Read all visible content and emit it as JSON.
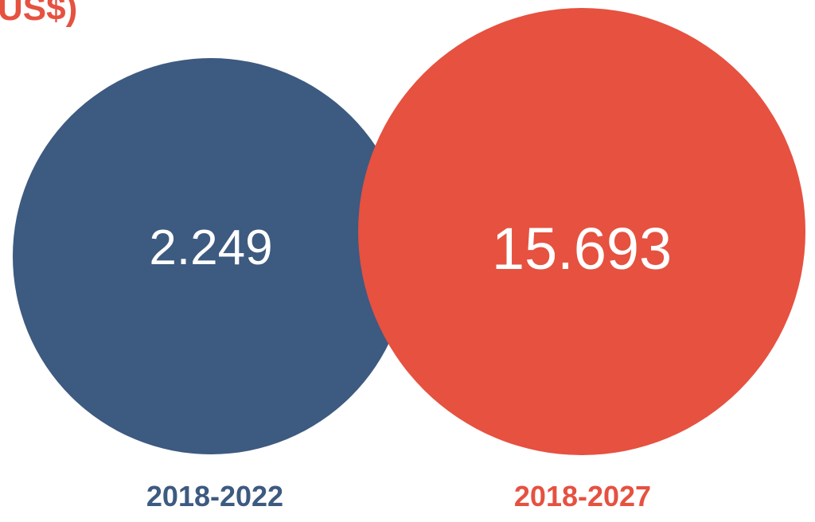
{
  "chart_data": {
    "type": "bubble",
    "title": "US$)",
    "series": [
      {
        "label": "2018-2022",
        "value": 2.249,
        "value_text": "2.249",
        "color": "#3d5a80"
      },
      {
        "label": "2018-2027",
        "value": 15.693,
        "value_text": "15.693",
        "color": "#e65140"
      }
    ],
    "text_color": "#ffffff",
    "title_color": "#e65140"
  }
}
